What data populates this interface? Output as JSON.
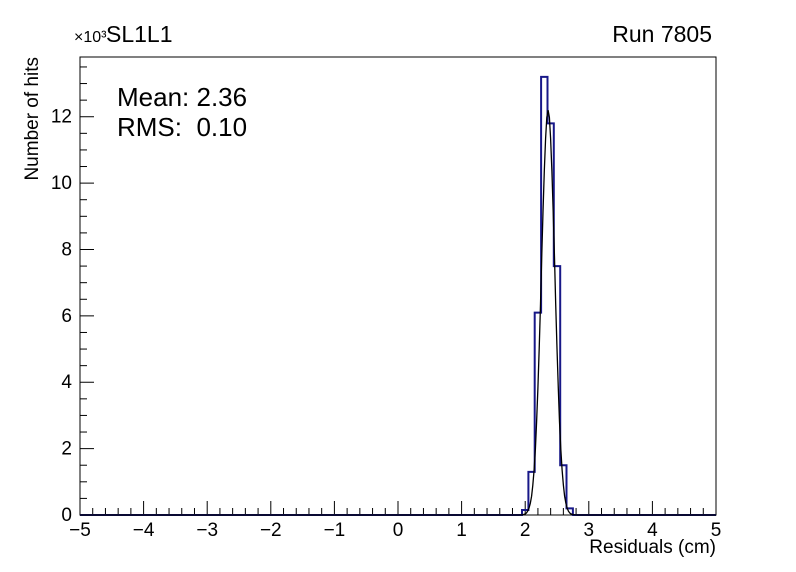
{
  "header": {
    "y_multiplier": "×10³",
    "title": "SL1L1",
    "run": "Run 7805"
  },
  "stats": {
    "mean_text": "Mean: 2.36",
    "rms_text": "RMS:  0.10"
  },
  "chart_data": {
    "type": "bar",
    "subtype": "step-histogram",
    "title": "SL1L1",
    "annotation": "Run 7805",
    "xlabel": "Residuals (cm)",
    "ylabel": "Number of hits",
    "y_scale_label": "×10³",
    "xlim": [
      -5,
      5
    ],
    "ylim": [
      0,
      13.8
    ],
    "grid": false,
    "legend": false,
    "x_major_ticks": [
      -5,
      -4,
      -3,
      -2,
      -1,
      0,
      1,
      2,
      3,
      4,
      5
    ],
    "x_tick_labels": [
      "−5",
      "−4",
      "−3",
      "−2",
      "−1",
      "0",
      "1",
      "2",
      "3",
      "4",
      "5"
    ],
    "x_minor_step": 0.2,
    "y_major_ticks": [
      0,
      2,
      4,
      6,
      8,
      10,
      12
    ],
    "y_tick_labels": [
      "0",
      "2",
      "4",
      "6",
      "8",
      "10",
      "12"
    ],
    "y_minor_step": 0.5,
    "histogram": {
      "bin_start": 1.95,
      "bin_width": 0.1,
      "values_thousands": [
        0.15,
        1.3,
        6.1,
        13.2,
        11.8,
        7.5,
        1.5,
        0.2
      ],
      "color": "#181888",
      "line_width": 2
    },
    "fit": {
      "shape": "gaussian",
      "mean": 2.36,
      "sigma": 0.105,
      "amplitude_thousands": 12.2,
      "color": "#000000",
      "line_width": 1.3
    },
    "stats": {
      "mean": 2.36,
      "rms": 0.1
    }
  }
}
